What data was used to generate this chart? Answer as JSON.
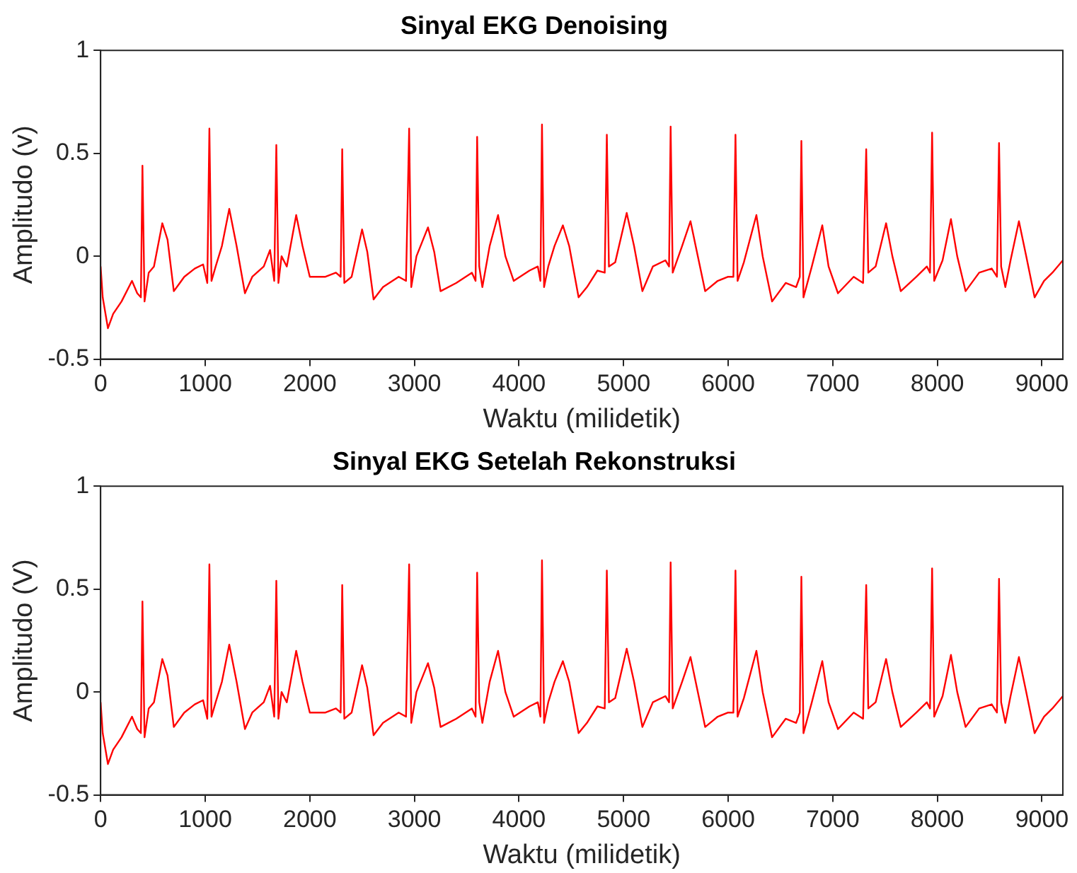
{
  "chart_data": [
    {
      "type": "line",
      "title": "Sinyal EKG Denoising",
      "xlabel": "Waktu (milidetik)",
      "ylabel": "Amplitudo (v)",
      "xlim": [
        0,
        9200
      ],
      "xticks": [
        0,
        1000,
        2000,
        3000,
        4000,
        5000,
        6000,
        7000,
        8000,
        9000
      ],
      "ylim": [
        -0.5,
        1
      ],
      "yticks": [
        -0.5,
        0,
        0.5,
        1
      ],
      "grid": false,
      "legend": false,
      "marker": "none",
      "line_style": "solid",
      "x": [
        0,
        20,
        70,
        120,
        200,
        300,
        350,
        385,
        400,
        420,
        460,
        510,
        590,
        640,
        700,
        800,
        900,
        980,
        1020,
        1040,
        1060,
        1100,
        1160,
        1230,
        1300,
        1380,
        1450,
        1560,
        1620,
        1660,
        1680,
        1700,
        1730,
        1780,
        1870,
        1930,
        2000,
        2150,
        2250,
        2295,
        2310,
        2330,
        2400,
        2500,
        2550,
        2610,
        2700,
        2850,
        2920,
        2950,
        2970,
        3020,
        3130,
        3190,
        3250,
        3400,
        3550,
        3585,
        3600,
        3620,
        3650,
        3720,
        3800,
        3870,
        3950,
        4100,
        4180,
        4205,
        4220,
        4240,
        4280,
        4340,
        4420,
        4480,
        4570,
        4650,
        4750,
        4820,
        4840,
        4860,
        4920,
        5030,
        5100,
        5180,
        5280,
        5400,
        5435,
        5450,
        5470,
        5560,
        5640,
        5710,
        5780,
        5900,
        6000,
        6050,
        6070,
        6090,
        6150,
        6270,
        6330,
        6420,
        6550,
        6650,
        6685,
        6700,
        6720,
        6800,
        6900,
        6960,
        7050,
        7200,
        7290,
        7320,
        7340,
        7410,
        7510,
        7570,
        7650,
        7800,
        7900,
        7930,
        7950,
        7970,
        8050,
        8130,
        8190,
        8270,
        8400,
        8520,
        8570,
        8590,
        8610,
        8650,
        8700,
        8780,
        8850,
        8930,
        9020,
        9100,
        9200
      ],
      "series": [
        {
          "color": "#ff0000",
          "values": [
            -0.05,
            -0.2,
            -0.35,
            -0.28,
            -0.22,
            -0.12,
            -0.18,
            -0.2,
            0.44,
            -0.22,
            -0.08,
            -0.05,
            0.16,
            0.08,
            -0.17,
            -0.1,
            -0.06,
            -0.04,
            -0.13,
            0.62,
            -0.12,
            -0.05,
            0.05,
            0.23,
            0.05,
            -0.18,
            -0.1,
            -0.05,
            0.03,
            -0.12,
            0.54,
            -0.13,
            0.0,
            -0.05,
            0.2,
            0.05,
            -0.1,
            -0.1,
            -0.08,
            -0.1,
            0.52,
            -0.13,
            -0.1,
            0.13,
            0.02,
            -0.21,
            -0.15,
            -0.1,
            -0.12,
            0.62,
            -0.15,
            0.0,
            0.14,
            0.02,
            -0.17,
            -0.13,
            -0.08,
            -0.12,
            0.58,
            -0.05,
            -0.15,
            0.05,
            0.2,
            0.0,
            -0.12,
            -0.07,
            -0.05,
            -0.12,
            0.64,
            -0.15,
            -0.05,
            0.05,
            0.15,
            0.05,
            -0.2,
            -0.15,
            -0.07,
            -0.08,
            0.59,
            -0.05,
            -0.03,
            0.21,
            0.05,
            -0.17,
            -0.05,
            -0.02,
            -0.05,
            0.63,
            -0.08,
            0.05,
            0.17,
            0.0,
            -0.17,
            -0.12,
            -0.1,
            -0.1,
            0.59,
            -0.12,
            -0.03,
            0.2,
            0.0,
            -0.22,
            -0.13,
            -0.15,
            -0.1,
            0.56,
            -0.2,
            -0.05,
            0.15,
            -0.05,
            -0.18,
            -0.1,
            -0.13,
            0.52,
            -0.08,
            -0.05,
            0.16,
            0.0,
            -0.17,
            -0.1,
            -0.05,
            -0.08,
            0.6,
            -0.12,
            -0.02,
            0.18,
            0.0,
            -0.17,
            -0.08,
            -0.06,
            -0.1,
            0.55,
            -0.05,
            -0.15,
            -0.02,
            0.17,
            0.0,
            -0.2,
            -0.12,
            -0.08,
            -0.02
          ]
        }
      ]
    },
    {
      "type": "line",
      "title": "Sinyal EKG Setelah Rekonstruksi",
      "xlabel": "Waktu (milidetik)",
      "ylabel": "Amplitudo (V)",
      "xlim": [
        0,
        9200
      ],
      "xticks": [
        0,
        1000,
        2000,
        3000,
        4000,
        5000,
        6000,
        7000,
        8000,
        9000
      ],
      "ylim": [
        -0.5,
        1
      ],
      "yticks": [
        -0.5,
        0,
        0.5,
        1
      ],
      "grid": false,
      "legend": false,
      "marker": "none",
      "line_style": "solid",
      "x": [
        0,
        20,
        70,
        120,
        200,
        300,
        350,
        385,
        400,
        420,
        460,
        510,
        590,
        640,
        700,
        800,
        900,
        980,
        1020,
        1040,
        1060,
        1100,
        1160,
        1230,
        1300,
        1380,
        1450,
        1560,
        1620,
        1660,
        1680,
        1700,
        1730,
        1780,
        1870,
        1930,
        2000,
        2150,
        2250,
        2295,
        2310,
        2330,
        2400,
        2500,
        2550,
        2610,
        2700,
        2850,
        2920,
        2950,
        2970,
        3020,
        3130,
        3190,
        3250,
        3400,
        3550,
        3585,
        3600,
        3620,
        3650,
        3720,
        3800,
        3870,
        3950,
        4100,
        4180,
        4205,
        4220,
        4240,
        4280,
        4340,
        4420,
        4480,
        4570,
        4650,
        4750,
        4820,
        4840,
        4860,
        4920,
        5030,
        5100,
        5180,
        5280,
        5400,
        5435,
        5450,
        5470,
        5560,
        5640,
        5710,
        5780,
        5900,
        6000,
        6050,
        6070,
        6090,
        6150,
        6270,
        6330,
        6420,
        6550,
        6650,
        6685,
        6700,
        6720,
        6800,
        6900,
        6960,
        7050,
        7200,
        7290,
        7320,
        7340,
        7410,
        7510,
        7570,
        7650,
        7800,
        7900,
        7930,
        7950,
        7970,
        8050,
        8130,
        8190,
        8270,
        8400,
        8520,
        8570,
        8590,
        8610,
        8650,
        8700,
        8780,
        8850,
        8930,
        9020,
        9100,
        9200
      ],
      "series": [
        {
          "color": "#ff0000",
          "values": [
            -0.05,
            -0.2,
            -0.35,
            -0.28,
            -0.22,
            -0.12,
            -0.18,
            -0.2,
            0.44,
            -0.22,
            -0.08,
            -0.05,
            0.16,
            0.08,
            -0.17,
            -0.1,
            -0.06,
            -0.04,
            -0.13,
            0.62,
            -0.12,
            -0.05,
            0.05,
            0.23,
            0.05,
            -0.18,
            -0.1,
            -0.05,
            0.03,
            -0.12,
            0.54,
            -0.13,
            0.0,
            -0.05,
            0.2,
            0.05,
            -0.1,
            -0.1,
            -0.08,
            -0.1,
            0.52,
            -0.13,
            -0.1,
            0.13,
            0.02,
            -0.21,
            -0.15,
            -0.1,
            -0.12,
            0.62,
            -0.15,
            0.0,
            0.14,
            0.02,
            -0.17,
            -0.13,
            -0.08,
            -0.12,
            0.58,
            -0.05,
            -0.15,
            0.05,
            0.2,
            0.0,
            -0.12,
            -0.07,
            -0.05,
            -0.12,
            0.64,
            -0.15,
            -0.05,
            0.05,
            0.15,
            0.05,
            -0.2,
            -0.15,
            -0.07,
            -0.08,
            0.59,
            -0.05,
            -0.03,
            0.21,
            0.05,
            -0.17,
            -0.05,
            -0.02,
            -0.05,
            0.63,
            -0.08,
            0.05,
            0.17,
            0.0,
            -0.17,
            -0.12,
            -0.1,
            -0.1,
            0.59,
            -0.12,
            -0.03,
            0.2,
            0.0,
            -0.22,
            -0.13,
            -0.15,
            -0.1,
            0.56,
            -0.2,
            -0.05,
            0.15,
            -0.05,
            -0.18,
            -0.1,
            -0.13,
            0.52,
            -0.08,
            -0.05,
            0.16,
            0.0,
            -0.17,
            -0.1,
            -0.05,
            -0.08,
            0.6,
            -0.12,
            -0.02,
            0.18,
            0.0,
            -0.17,
            -0.08,
            -0.06,
            -0.1,
            0.55,
            -0.05,
            -0.15,
            -0.02,
            0.17,
            0.0,
            -0.2,
            -0.12,
            -0.08,
            -0.02
          ]
        }
      ]
    }
  ]
}
